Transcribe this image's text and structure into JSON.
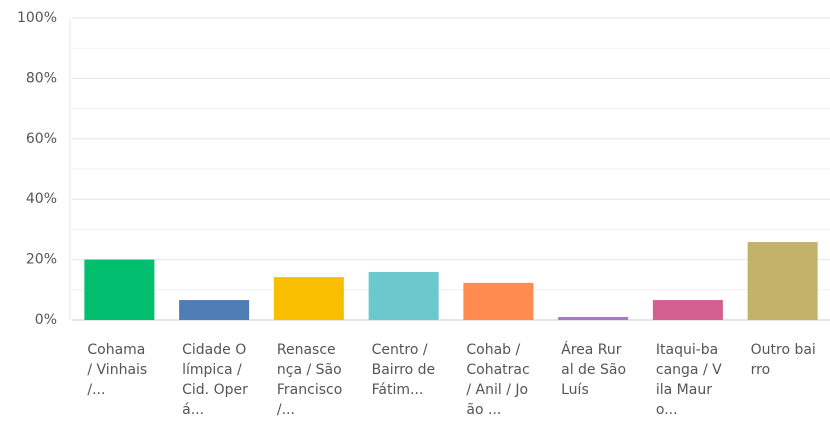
{
  "chart_data": {
    "type": "bar",
    "categories": [
      "Cohama / Vinhais /...",
      "Cidade Olímpica / Cid. Operá...",
      "Renascença / São Francisco /...",
      "Centro / Bairro de Fátim...",
      "Cohab / Cohatrac / Anil / João ...",
      "Área Rural de São Luís",
      "Itaqui-bacanga / Vila Mauro...",
      "Outro bairro"
    ],
    "values": [
      20,
      6.6,
      14.2,
      15.9,
      12.3,
      1,
      6.6,
      25.8
    ],
    "colors": [
      "#00bf6f",
      "#507cb6",
      "#f9be00",
      "#6bc8cd",
      "#ff8b4f",
      "#a67bbd",
      "#d25f90",
      "#c4b26b"
    ],
    "ylim": [
      0,
      100
    ],
    "yticks": [
      {
        "value": 0,
        "label": "0%"
      },
      {
        "value": 20,
        "label": "20%"
      },
      {
        "value": 40,
        "label": "40%"
      },
      {
        "value": 60,
        "label": "60%"
      },
      {
        "value": 80,
        "label": "80%"
      },
      {
        "value": 100,
        "label": "100%"
      }
    ],
    "minor_yticks": [
      10,
      30,
      50,
      70,
      90
    ],
    "grid": true
  }
}
